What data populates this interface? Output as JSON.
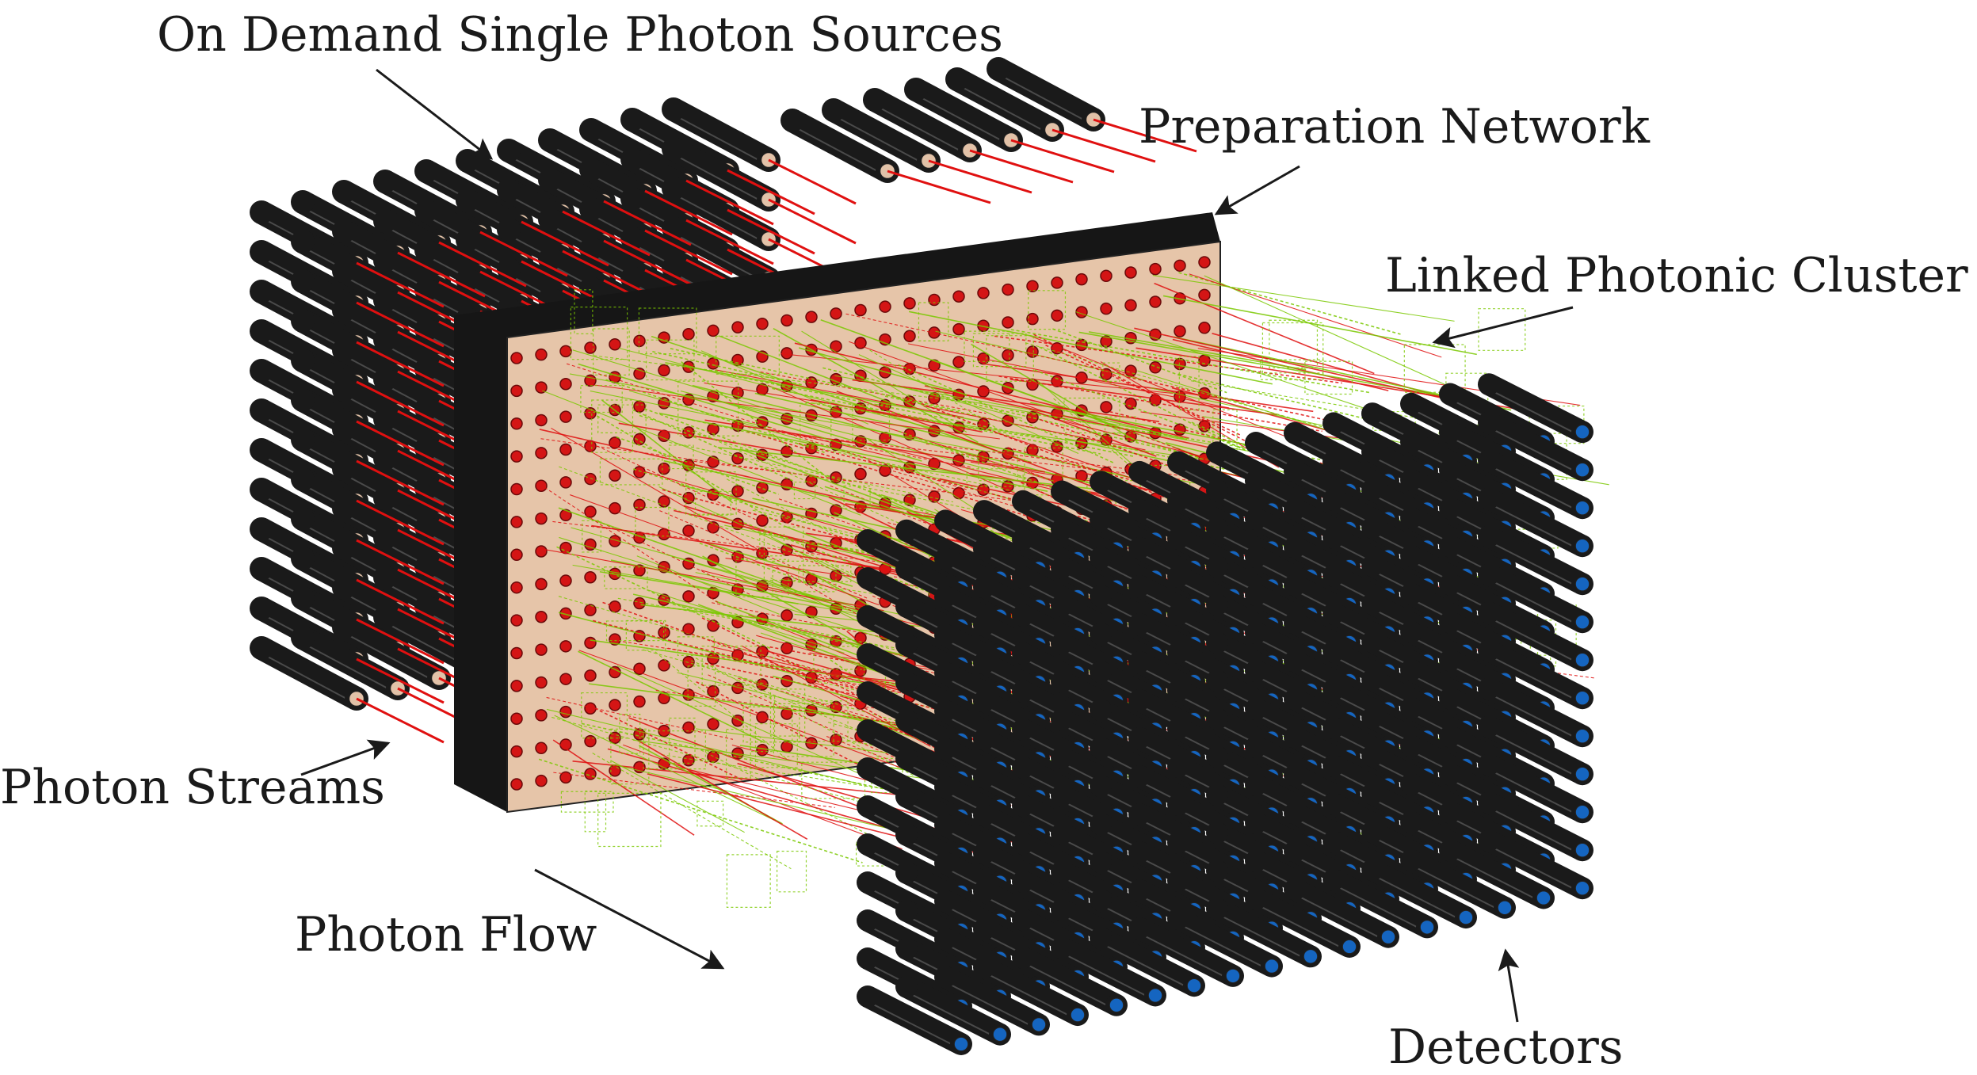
{
  "labels": {
    "sources": "On Demand Single Photon Sources",
    "network": "Preparation Network",
    "cluster": "Linked Photonic Cluster",
    "streams": "Photon Streams",
    "flow": "Photon Flow",
    "detectors": "Detectors"
  },
  "colors": {
    "cylinder": "#1a1a1a",
    "cylinder_highlight": "#4a4a4a",
    "source_face": "#e2c2a8",
    "photon_line": "#e01010",
    "panel_front": "#e6c5a9",
    "panel_edge": "#161616",
    "panel_dot": "#d41515",
    "cluster_line": "#7ac800",
    "detector_face": "#1565c0",
    "arrow": "#1a1a1a"
  },
  "grid": {
    "rows": 14,
    "cols": 18
  },
  "icons": {
    "source": "cylinder-source-icon",
    "detector": "cylinder-detector-icon",
    "arrow": "arrow-icon"
  }
}
